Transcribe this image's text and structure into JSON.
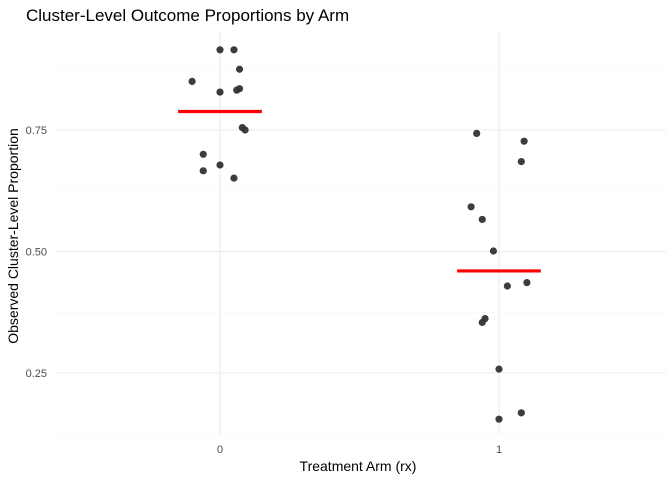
{
  "chart_data": {
    "type": "scatter",
    "title": "Cluster-Level Outcome Proportions by Arm",
    "xlabel": "Treatment Arm (rx)",
    "ylabel": "Observed Cluster-Level Proportion",
    "categories": [
      "0",
      "1"
    ],
    "y_ticks": [
      0.25,
      0.5,
      0.75
    ],
    "y_tick_labels": [
      "0.25",
      "0.50",
      "0.75"
    ],
    "ylim": [
      0.13,
      0.94
    ],
    "grid": true,
    "legend": "none",
    "point_color": "#333333",
    "mean_color": "#ff0000",
    "series": [
      {
        "category": "0",
        "points": [
          {
            "jitter": 0.0,
            "y": 0.915
          },
          {
            "jitter": 0.05,
            "y": 0.915
          },
          {
            "jitter": -0.1,
            "y": 0.85
          },
          {
            "jitter": 0.07,
            "y": 0.875
          },
          {
            "jitter": 0.0,
            "y": 0.828
          },
          {
            "jitter": 0.06,
            "y": 0.832
          },
          {
            "jitter": 0.07,
            "y": 0.835
          },
          {
            "jitter": 0.08,
            "y": 0.755
          },
          {
            "jitter": 0.09,
            "y": 0.75
          },
          {
            "jitter": -0.06,
            "y": 0.7
          },
          {
            "jitter": 0.0,
            "y": 0.678
          },
          {
            "jitter": -0.06,
            "y": 0.666
          },
          {
            "jitter": 0.05,
            "y": 0.651
          }
        ],
        "mean": 0.788
      },
      {
        "category": "1",
        "points": [
          {
            "jitter": -0.08,
            "y": 0.743
          },
          {
            "jitter": 0.09,
            "y": 0.727
          },
          {
            "jitter": 0.08,
            "y": 0.685
          },
          {
            "jitter": -0.1,
            "y": 0.592
          },
          {
            "jitter": -0.06,
            "y": 0.566
          },
          {
            "jitter": -0.02,
            "y": 0.501
          },
          {
            "jitter": 0.1,
            "y": 0.436
          },
          {
            "jitter": 0.03,
            "y": 0.429
          },
          {
            "jitter": -0.05,
            "y": 0.362
          },
          {
            "jitter": -0.06,
            "y": 0.354
          },
          {
            "jitter": 0.0,
            "y": 0.258
          },
          {
            "jitter": 0.08,
            "y": 0.168
          },
          {
            "jitter": 0.0,
            "y": 0.155
          }
        ],
        "mean": 0.46
      }
    ]
  }
}
